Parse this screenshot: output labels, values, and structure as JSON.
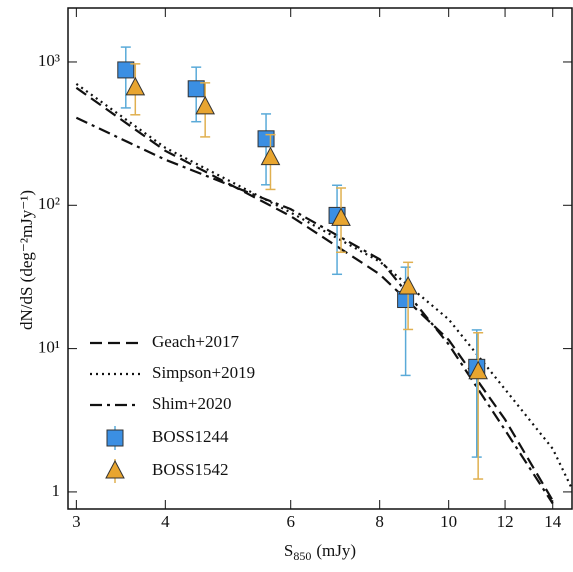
{
  "chart_data": {
    "type": "scatter",
    "xlabel": "S",
    "xlabel_sub": "850",
    "xlabel_unit": "(mJy)",
    "ylabel": "dN/dS (deg⁻²mJy⁻¹)",
    "xlog": true,
    "ylog": true,
    "xlim": [
      2.92,
      14.9
    ],
    "ylim": [
      0.76,
      2380
    ],
    "xticks": [
      3,
      4,
      6,
      8,
      10,
      12,
      14
    ],
    "yticks": [
      1,
      {
        "value": 10,
        "label": "10¹"
      },
      {
        "value": 100,
        "label": "10²"
      },
      {
        "value": 1000,
        "label": "10³"
      }
    ],
    "models": [
      {
        "name": "Geach+2017",
        "dash": "12 6",
        "x": [
          3,
          4,
          6,
          8,
          10,
          12,
          14
        ],
        "values": [
          660,
          240,
          84,
          33,
          11.5,
          3.2,
          0.87
        ]
      },
      {
        "name": "Simpson+2019",
        "dash": "2 4",
        "x": [
          3,
          4,
          6,
          8,
          10,
          12,
          14,
          14.9
        ],
        "values": [
          703,
          252,
          89,
          40.5,
          16,
          5.2,
          2,
          1.05
        ]
      },
      {
        "name": "Shim+2020",
        "dash": "12 5 3 5",
        "x": [
          3,
          4,
          6,
          8,
          10,
          12,
          14
        ],
        "values": [
          408,
          208,
          94,
          42,
          10.7,
          2.7,
          0.83
        ]
      }
    ],
    "series": [
      {
        "name": "BOSS1244",
        "marker": "square",
        "color": "#3b8fe3",
        "errcolor": "#5aaad8",
        "x": [
          3.52,
          4.42,
          5.54,
          6.97,
          8.7,
          10.95
        ],
        "values": [
          880,
          650,
          291,
          85,
          22,
          7.4
        ],
        "upper": [
          1270,
          920,
          434,
          138,
          37,
          13.5
        ],
        "lower": [
          478,
          383,
          139,
          33,
          6.5,
          1.75
        ]
      },
      {
        "name": "BOSS1542",
        "marker": "triangle",
        "color": "#e8a530",
        "errcolor": "#e0b050",
        "x": [
          3.63,
          4.55,
          5.62,
          7.06,
          8.77,
          11.0
        ],
        "values": [
          660,
          486,
          215,
          81,
          26.9,
          6.9
        ],
        "upper": [
          970,
          715,
          311,
          132,
          40,
          12.9
        ],
        "lower": [
          428,
          300,
          129,
          47,
          13.6,
          1.23
        ]
      }
    ]
  }
}
